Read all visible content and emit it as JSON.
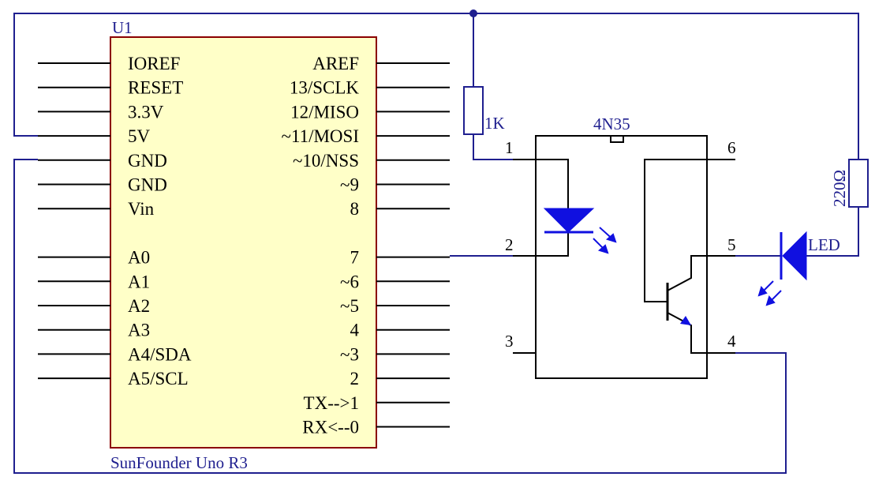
{
  "colors": {
    "wire": "#1f1f8f",
    "black": "#000000",
    "chip_fill": "#ffffc8",
    "chip_border": "#8b0000",
    "arrow_blue": "#1010e0",
    "label_blue": "#1f1f8f"
  },
  "board": {
    "ref": "U1",
    "name": "SunFounder Uno R3",
    "left_pins": [
      "IOREF",
      "RESET",
      "3.3V",
      "5V",
      "GND",
      "GND",
      "Vin",
      "A0",
      "A1",
      "A2",
      "A3",
      "A4/SDA",
      "A5/SCL"
    ],
    "right_pins": [
      "AREF",
      "13/SCLK",
      "12/MISO",
      "~11/MOSI",
      "~10/NSS",
      "~9",
      "8",
      "7",
      "~6",
      "~5",
      "4",
      "~3",
      "2",
      "TX-->1",
      "RX<--0"
    ]
  },
  "optocoupler": {
    "name": "4N35",
    "pins": [
      "1",
      "2",
      "3",
      "4",
      "5",
      "6"
    ]
  },
  "resistor_1k": {
    "label": "1K"
  },
  "resistor_220": {
    "label": "220Ω"
  },
  "led": {
    "label": "LED"
  }
}
